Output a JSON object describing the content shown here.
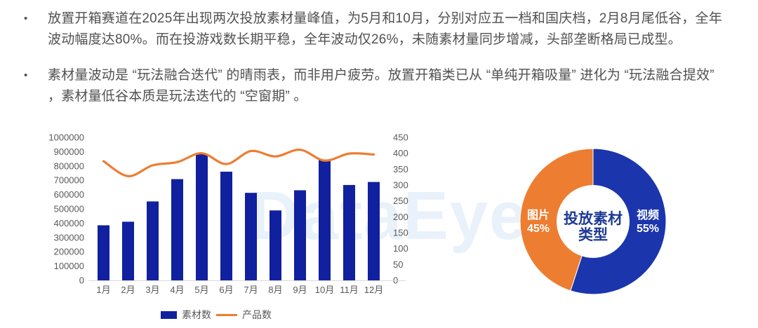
{
  "bullets": [
    {
      "text": "放置开箱赛道在2025年出现两次投放素材量峰值，为5月和10月，分别对应五一档和国庆档，2月8月尾低谷，全年波动幅度达80%。而在投游戏数长期平稳，全年波动仅26%，未随素材量同步增减，头部垄断格局已成型。"
    },
    {
      "text": "素材量波动是 “玩法融合迭代” 的晴雨表，而非用户疲劳。放置开箱类已从 “单纯开箱吸量” 进化为 “玩法融合提效” ，素材量低谷本质是玩法迭代的 “空窗期” 。"
    }
  ],
  "watermark": "DataEye",
  "chart_data": [
    {
      "type": "bar",
      "subtype": "combo-bar-line",
      "categories": [
        "1月",
        "2月",
        "3月",
        "4月",
        "5月",
        "6月",
        "7月",
        "8月",
        "9月",
        "10月",
        "11月",
        "12月"
      ],
      "series": [
        {
          "name": "素材数",
          "kind": "bar",
          "axis": "left",
          "color": "#10209f",
          "values": [
            385000,
            410000,
            552000,
            708000,
            884000,
            760000,
            612000,
            489000,
            630000,
            845000,
            667000,
            688000
          ]
        },
        {
          "name": "产品数",
          "kind": "line",
          "axis": "right",
          "color": "#ed7d31",
          "values": [
            375,
            328,
            362,
            372,
            400,
            366,
            407,
            390,
            411,
            377,
            399,
            396
          ]
        }
      ],
      "left_axis": {
        "min": 0,
        "max": 1000000,
        "step": 100000
      },
      "right_axis": {
        "min": 0,
        "max": 450,
        "step": 50
      },
      "grid": false,
      "legend_position": "bottom",
      "axis_text_color": "#595959",
      "axis_line_color": "#d9d9d9"
    },
    {
      "type": "pie",
      "subtype": "donut",
      "center_label": {
        "line1": "投放素材",
        "line2": "类型",
        "color": "#1e3a96"
      },
      "slices": [
        {
          "label": "视频",
          "display": "55%",
          "value": 55,
          "color": "#1b35ad"
        },
        {
          "label": "图片",
          "display": "45%",
          "value": 45,
          "color": "#ed7d31"
        }
      ],
      "start_angle_deg": 0,
      "direction": "clockwise",
      "label_text_color": "#ffffff"
    }
  ]
}
